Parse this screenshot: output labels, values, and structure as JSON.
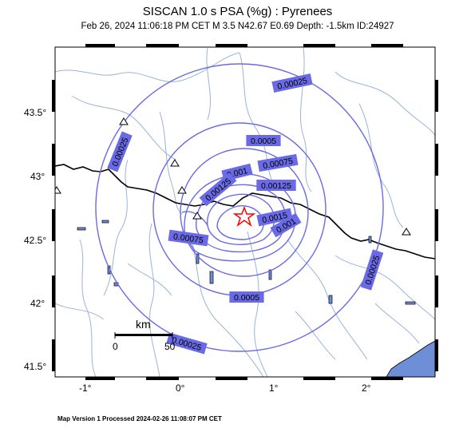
{
  "title": "SISCAN 1.0 s PSA (%g) : Pyrenees",
  "subtitle": "Feb 26, 2024 11:06:18 PM CET   M 3.5   N42.67 E0.69   Depth: -1.5km   ID:24927",
  "footer": "Map Version 1 Processed 2024-02-26 11:08:07 PM CET",
  "epicenter": {
    "lat": 42.67,
    "lon": 0.69,
    "symbol": "star-icon"
  },
  "axes": {
    "x_ticks": [
      "-1°",
      "0°",
      "1°",
      "2°"
    ],
    "y_ticks": [
      "43.5°",
      "43°",
      "42.5°",
      "42°",
      "41.5°"
    ]
  },
  "scale_bar": {
    "unit": "km",
    "start_label": "0",
    "end_label": "50"
  },
  "contour_labels": [
    "0.00025",
    "0.00025",
    "0.0005",
    "0.00075",
    "0.001",
    "0.00125",
    "0.00125",
    "0.0015",
    "0.001",
    "0.00075",
    "0.0005",
    "0.00025",
    "0.00025"
  ],
  "colors": {
    "contour": "#6a6ae6",
    "label_bg": "#6a6ae6",
    "rivers": "#9ab4d6",
    "border": "#000000",
    "sea": "#6e8fd8",
    "star": "#ff0000"
  }
}
